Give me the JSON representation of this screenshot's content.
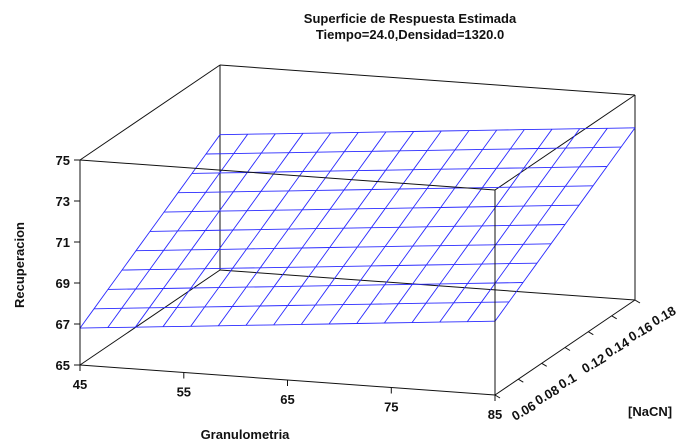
{
  "chart_data": {
    "type": "surface",
    "title": "Superficie de Respuesta Estimada",
    "subtitle": "Tiempo=24.0,Densidad=1320.0",
    "xlabel": "Granulometria",
    "ylabel": "[NaCN]",
    "zlabel": "Recuperacion",
    "xlim": [
      45,
      85
    ],
    "ylim": [
      0.06,
      0.18
    ],
    "zlim": [
      65,
      75
    ],
    "x_ticks": [
      "45",
      "55",
      "65",
      "75",
      "85"
    ],
    "y_ticks": [
      "0.06",
      "0.08",
      "0.1",
      "0.12",
      "0.14",
      "0.16",
      "0.18"
    ],
    "z_ticks": [
      "65",
      "67",
      "69",
      "71",
      "73",
      "75"
    ],
    "grid_lines": {
      "x": 15,
      "y": 10
    },
    "corner_values": [
      {
        "x": 45,
        "y": 0.06,
        "z": 66.8
      },
      {
        "x": 85,
        "y": 0.06,
        "z": 68.6
      },
      {
        "x": 45,
        "y": 0.18,
        "z": 71.6
      },
      {
        "x": 85,
        "y": 0.18,
        "z": 73.4
      }
    ],
    "surface_color": "#2b2bff"
  }
}
